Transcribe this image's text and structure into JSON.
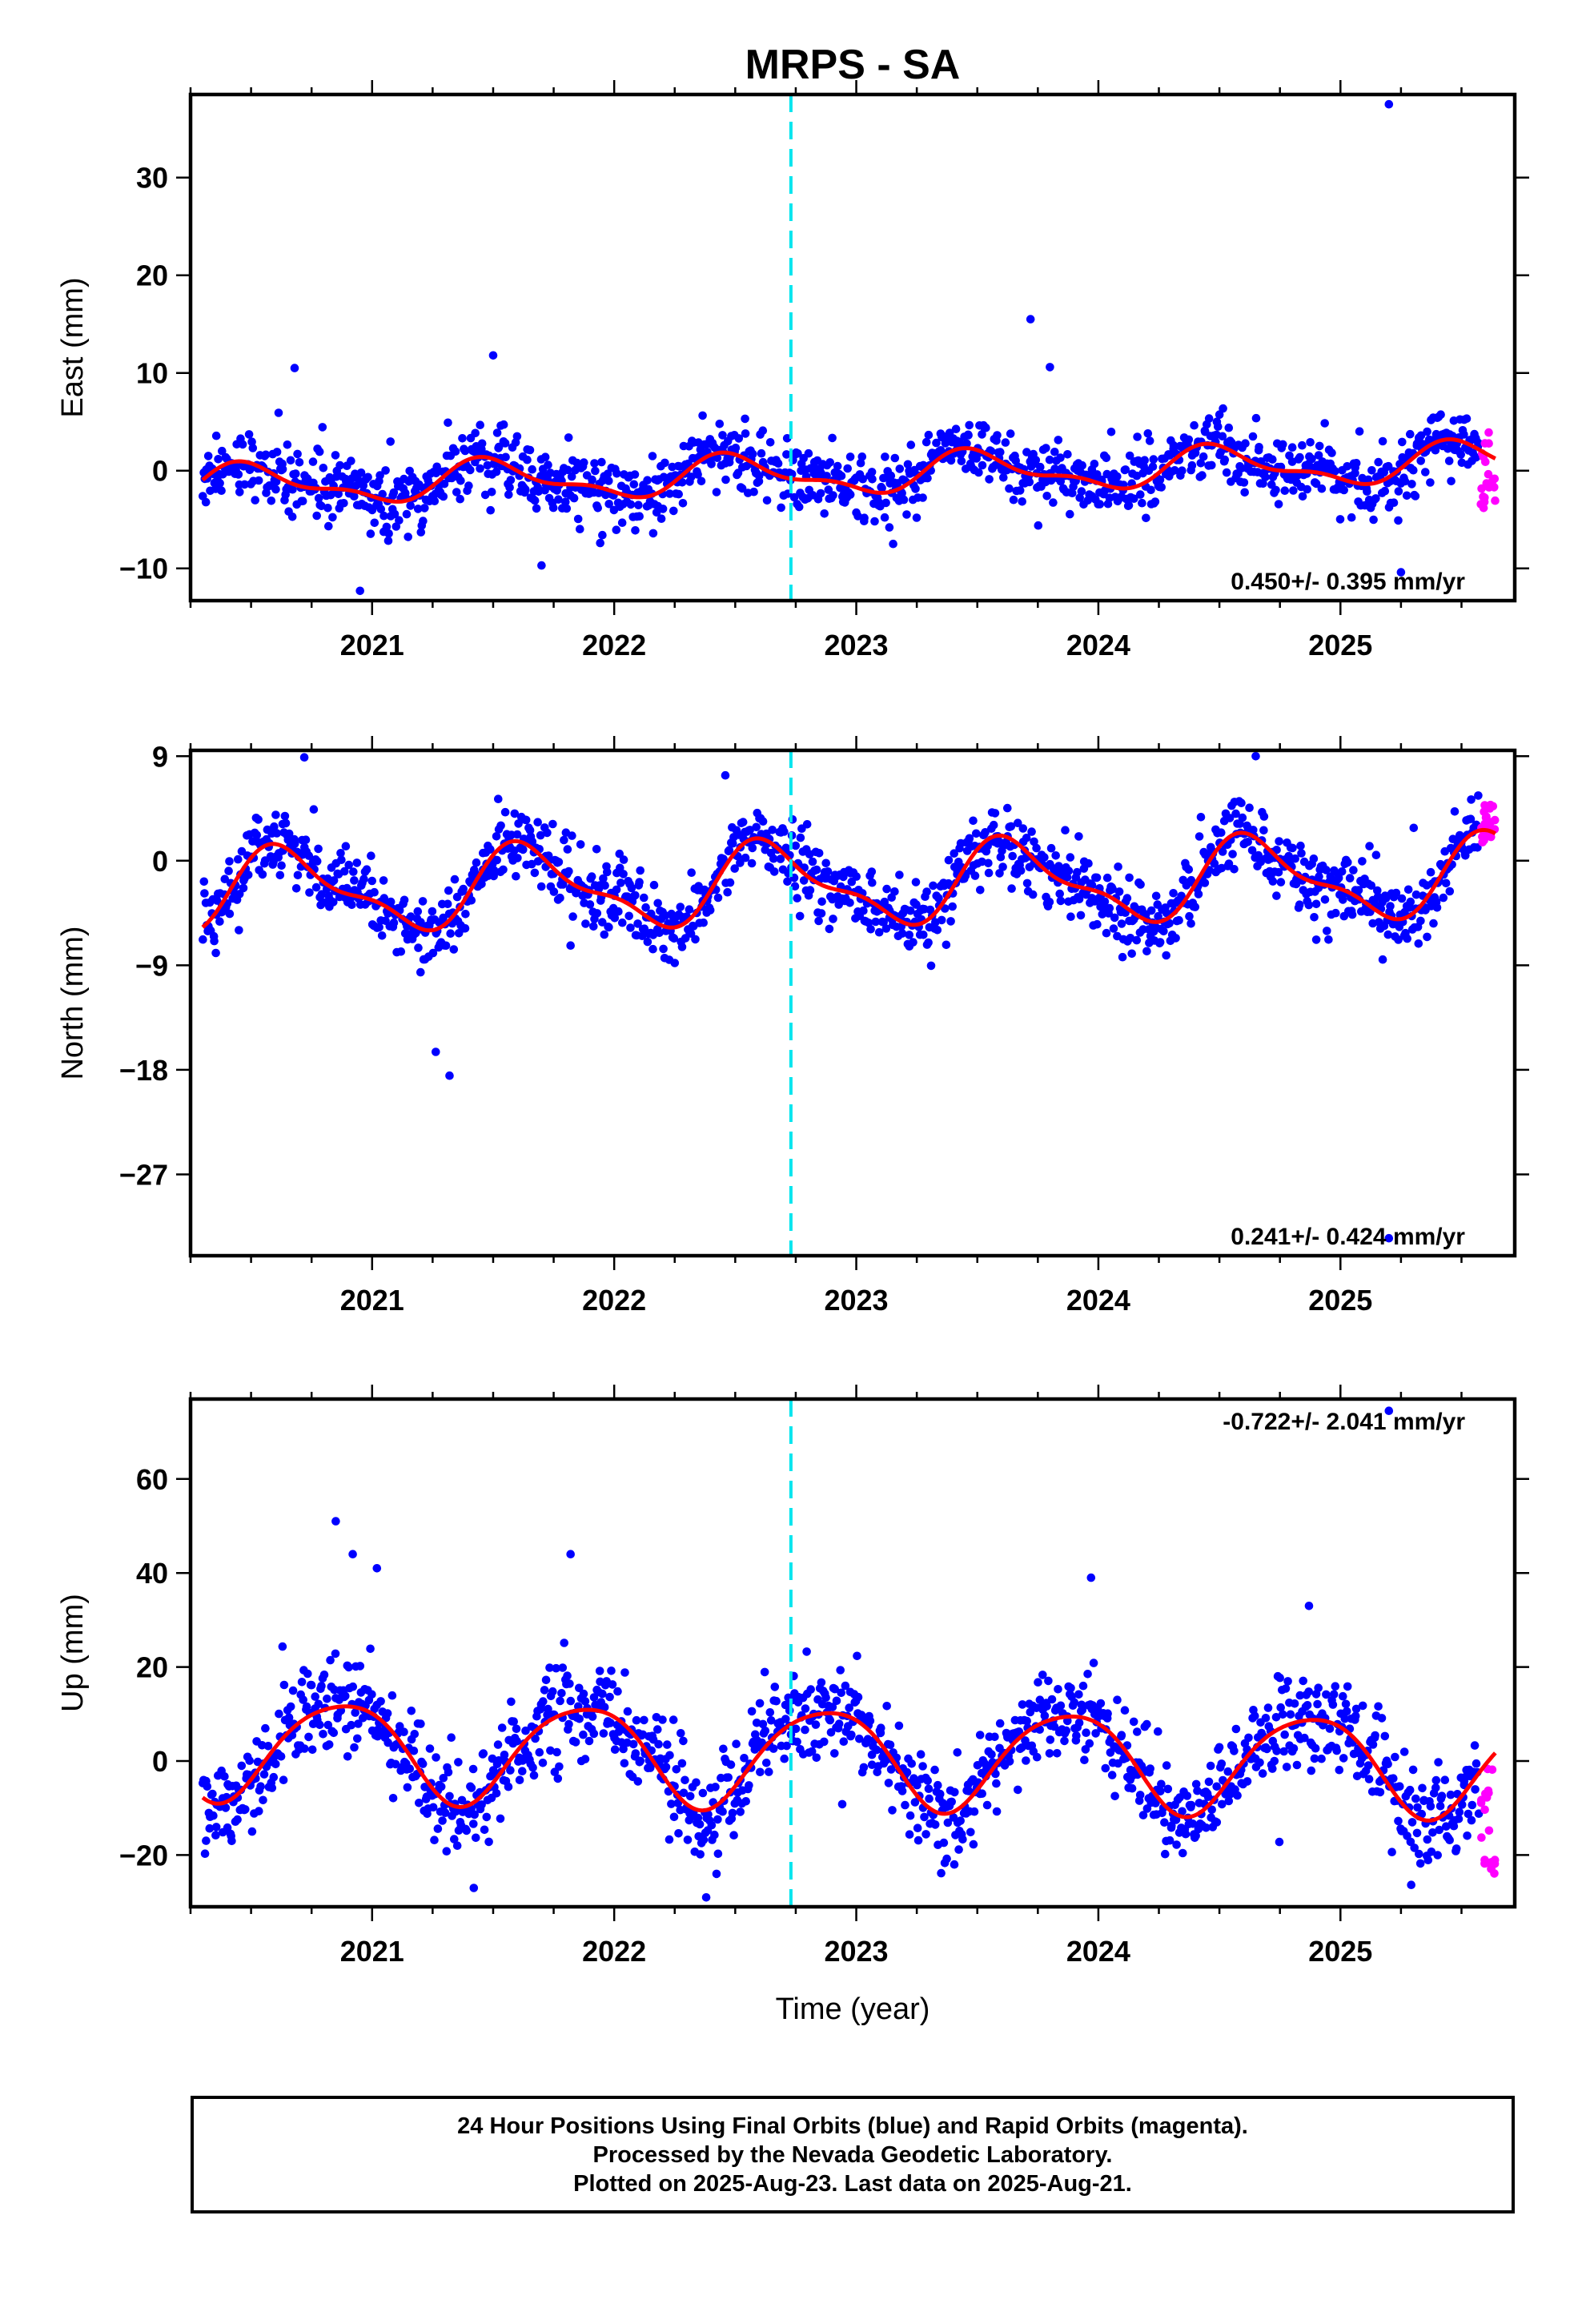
{
  "title": "MRPS - SA",
  "caption": [
    "24 Hour Positions Using Final Orbits (blue) and Rapid Orbits (magenta).",
    "Processed by the Nevada Geodetic Laboratory.",
    "Plotted on 2025-Aug-23. Last data on 2025-Aug-21."
  ],
  "colors": {
    "final_orbits": "#0000ff",
    "rapid_orbits": "#ff00ff",
    "model_fit": "#ff0000",
    "event_line": "#00e5ee"
  },
  "chart_data": [
    {
      "type": "scatter",
      "ylabel": "East (mm)",
      "xlabel": "",
      "xlim": [
        2020.25,
        2025.72
      ],
      "ylim": [
        -13.3,
        38.5
      ],
      "xticks": [
        "2021",
        "2022",
        "2023",
        "2024",
        "2025"
      ],
      "yticks": [
        "−10",
        "0",
        "10",
        "20",
        "30"
      ],
      "ytick_values": [
        -10,
        0,
        10,
        20,
        30
      ],
      "rate": "0.450+/- 0.395 mm/yr",
      "rate_position": "bottom-right",
      "event_line_x": 2022.73,
      "model": {
        "offset": -0.35,
        "rate": 0.45,
        "annual_amp": 1.8,
        "annual_peak": 2020.5,
        "semi_amp": 0.8,
        "semi_peak": 2020.42
      },
      "noise": 1.6,
      "outliers": [
        [
          2025.2,
          37.5
        ],
        [
          2023.72,
          15.5
        ],
        [
          2021.5,
          11.8
        ],
        [
          2020.68,
          10.5
        ],
        [
          2023.8,
          10.6
        ],
        [
          2020.95,
          -12.3
        ],
        [
          2025.25,
          -10.4
        ],
        [
          2021.7,
          -9.7
        ]
      ],
      "series": [
        {
          "name": "Final Orbits (blue)",
          "x_range": [
            2020.3,
            2025.57
          ],
          "count": 1300
        },
        {
          "name": "Rapid Orbits (magenta)",
          "x_range": [
            2025.58,
            2025.64
          ],
          "count": 20,
          "values_range": [
            -4,
            4
          ]
        }
      ]
    },
    {
      "type": "scatter",
      "ylabel": "North (mm)",
      "xlabel": "",
      "xlim": [
        2020.25,
        2025.72
      ],
      "ylim": [
        -34,
        9.5
      ],
      "xticks": [
        "2021",
        "2022",
        "2023",
        "2024",
        "2025"
      ],
      "yticks": [
        "−27",
        "−18",
        "−9",
        "0",
        "9"
      ],
      "ytick_values": [
        -27,
        -18,
        -9,
        0,
        9
      ],
      "rate": "0.241+/- 0.424 mm/yr",
      "rate_position": "bottom-right",
      "event_line_x": 2022.73,
      "model": {
        "offset": -2.0,
        "rate": 0.24,
        "annual_amp": 3.2,
        "annual_peak": 2020.65,
        "semi_amp": 1.2,
        "semi_peak": 2020.55
      },
      "noise": 1.5,
      "outliers": [
        [
          2021.32,
          -18.5
        ],
        [
          2025.2,
          -32.5
        ],
        [
          2020.72,
          8.9
        ],
        [
          2024.65,
          9.0
        ],
        [
          2024.9,
          -6.8
        ],
        [
          2021.2,
          -9.6
        ],
        [
          2022.25,
          -8.8
        ],
        [
          2021.82,
          -7.3
        ]
      ],
      "series": [
        {
          "name": "Final Orbits (blue)",
          "x_range": [
            2020.3,
            2025.57
          ],
          "count": 1300
        },
        {
          "name": "Rapid Orbits (magenta)",
          "x_range": [
            2025.58,
            2025.64
          ],
          "count": 20,
          "values_range": [
            1.5,
            5.5
          ]
        }
      ]
    },
    {
      "type": "scatter",
      "ylabel": "Up (mm)",
      "xlabel": "Time (year)",
      "xlim": [
        2020.25,
        2025.72
      ],
      "ylim": [
        -31,
        77
      ],
      "xticks": [
        "2021",
        "2022",
        "2023",
        "2024",
        "2025"
      ],
      "yticks": [
        "−20",
        "0",
        "20",
        "40",
        "60"
      ],
      "ytick_values": [
        -20,
        0,
        20,
        40,
        60
      ],
      "rate": "-0.722+/- 2.041 mm/yr",
      "rate_position": "top-right",
      "event_line_x": 2022.73,
      "model": {
        "offset": 1.0,
        "rate": -0.72,
        "annual_amp": 10.5,
        "annual_peak": 2020.87,
        "semi_amp": 1.5,
        "semi_peak": 2020.6
      },
      "noise": 5.0,
      "outliers": [
        [
          2025.2,
          74.5
        ],
        [
          2020.85,
          51
        ],
        [
          2020.92,
          44
        ],
        [
          2021.82,
          44
        ],
        [
          2023.97,
          39
        ],
        [
          2021.02,
          41
        ],
        [
          2024.87,
          33
        ],
        [
          2021.42,
          -27
        ],
        [
          2022.38,
          -29
        ],
        [
          2020.42,
          -17
        ]
      ],
      "series": [
        {
          "name": "Final Orbits (blue)",
          "x_range": [
            2020.3,
            2025.57
          ],
          "count": 1300
        },
        {
          "name": "Rapid Orbits (magenta)",
          "x_range": [
            2025.58,
            2025.64
          ],
          "count": 20,
          "values_range": [
            -24,
            1
          ]
        }
      ]
    }
  ]
}
